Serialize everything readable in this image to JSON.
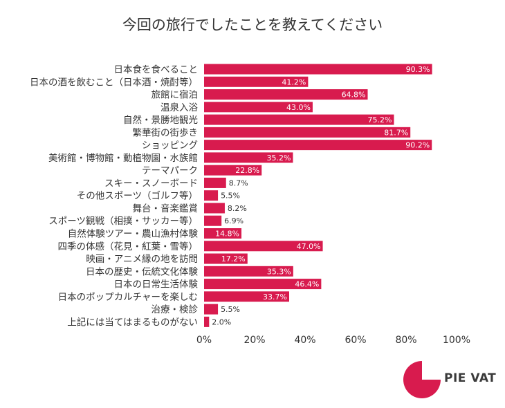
{
  "chart_data": {
    "type": "bar",
    "orientation": "horizontal",
    "title": "今回の旅行でしたことを教えてください",
    "categories": [
      "日本食を食べること",
      "日本の酒を飲むこと（日本酒・焼酎等）",
      "旅館に宿泊",
      "温泉入浴",
      "自然・景勝地観光",
      "繁華街の街歩き",
      "ショッピング",
      "美術館・博物館・動植物園・水族館",
      "テーマパーク",
      "スキー・スノーボード",
      "その他スポーツ（ゴルフ等）",
      "舞台・音楽鑑賞",
      "スポーツ観戦（相撲・サッカー等）",
      "自然体験ツアー・農山漁村体験",
      "四季の体感（花見・紅葉・雪等）",
      "映画・アニメ縁の地を訪問",
      "日本の歴史・伝統文化体験",
      "日本の日常生活体験",
      "日本のポップカルチャーを楽しむ",
      "治療・検診",
      "上記には当てはまるものがない"
    ],
    "values": [
      90.3,
      41.2,
      64.8,
      43.0,
      75.2,
      81.7,
      90.2,
      35.2,
      22.8,
      8.7,
      5.5,
      8.2,
      6.9,
      14.8,
      47.0,
      17.2,
      35.3,
      46.4,
      33.7,
      5.5,
      2.0
    ],
    "value_labels": [
      "90.3%",
      "41.2%",
      "64.8%",
      "43.0%",
      "75.2%",
      "81.7%",
      "90.2%",
      "35.2%",
      "22.8%",
      "8.7%",
      "5.5%",
      "8.2%",
      "6.9%",
      "14.8%",
      "47.0%",
      "17.2%",
      "35.3%",
      "46.4%",
      "33.7%",
      "5.5%",
      "2.0%"
    ],
    "xlim": [
      0,
      100
    ],
    "xticks": [
      0,
      20,
      40,
      60,
      80,
      100
    ],
    "xtick_labels": [
      "0%",
      "20%",
      "40%",
      "60%",
      "80%",
      "100%"
    ],
    "xlabel": "",
    "ylabel": "",
    "grid": false,
    "bar_color": "#D81B4E"
  },
  "brand": {
    "name": "PIE VAT",
    "color": "#D81B4E"
  }
}
